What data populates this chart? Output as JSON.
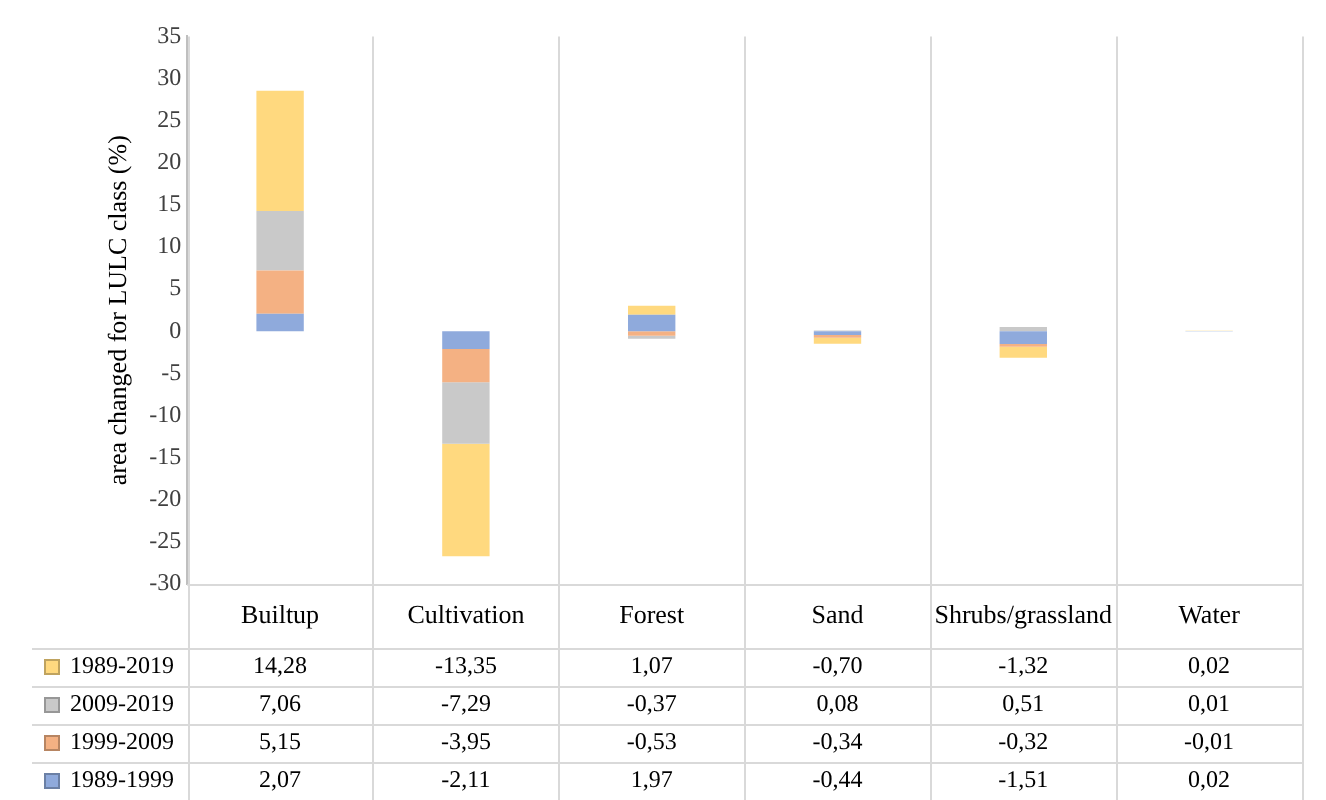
{
  "chart_data": {
    "type": "bar",
    "stacked": true,
    "ylabel": "area changed for LULC class (%)",
    "categories": [
      "Builtup",
      "Cultivation",
      "Forest",
      "Sand",
      "Shrubs/grassland",
      "Water"
    ],
    "ylim": [
      -30,
      35
    ],
    "yticks": [
      -30,
      -25,
      -20,
      -15,
      -10,
      -5,
      0,
      5,
      10,
      15,
      20,
      25,
      30,
      35
    ],
    "grid": "x",
    "legend": "bottom",
    "data_labels": true,
    "series": [
      {
        "name": "1989-1999",
        "color": "#8faadc",
        "values": [
          2.07,
          -2.11,
          1.97,
          -0.44,
          -1.51,
          0.02
        ],
        "value_labels": [
          "2,07",
          "-2,11",
          "1,97",
          "-0,44",
          "-1,51",
          "0,02"
        ]
      },
      {
        "name": "1999-2009",
        "color": "#f4b183",
        "values": [
          5.15,
          -3.95,
          -0.53,
          -0.34,
          -0.32,
          -0.01
        ],
        "value_labels": [
          "5,15",
          "-3,95",
          "-0,53",
          "-0,34",
          "-0,32",
          "-0,01"
        ]
      },
      {
        "name": "2009-2019",
        "color": "#c9c9c9",
        "values": [
          7.06,
          -7.29,
          -0.37,
          0.08,
          0.51,
          0.01
        ],
        "value_labels": [
          "7,06",
          "-7,29",
          "-0,37",
          "0,08",
          "0,51",
          "0,01"
        ]
      },
      {
        "name": "1989-2019",
        "color": "#ffd97f",
        "values": [
          14.28,
          -13.35,
          1.07,
          -0.7,
          -1.32,
          0.02
        ],
        "value_labels": [
          "14,28",
          "-13,35",
          "1,07",
          "-0,70",
          "-1,32",
          "0,02"
        ]
      }
    ]
  }
}
